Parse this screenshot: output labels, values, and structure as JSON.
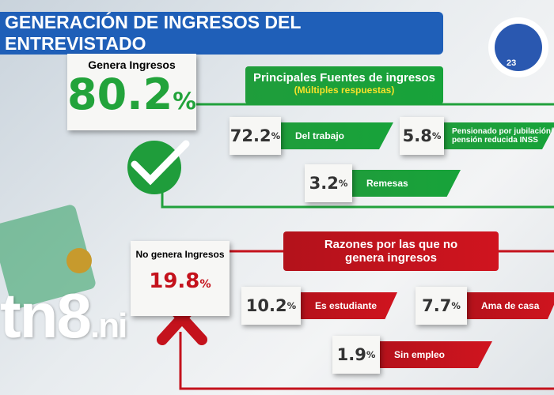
{
  "header": {
    "title": "GENERACIÓN DE INGRESOS DEL ENTREVISTADO",
    "logo_text": "23"
  },
  "generates": {
    "label": "Genera Ingresos",
    "value": "80.2",
    "unit": "%"
  },
  "sources": {
    "title": "Principales Fuentes de ingresos",
    "subtitle": "(Múltiples respuestas)",
    "items": [
      {
        "value": "72.2",
        "unit": "%",
        "label": "Del trabajo"
      },
      {
        "value": "5.8",
        "unit": "%",
        "label": "Pensionado por jubilación/ pensión reducida INSS"
      },
      {
        "value": "3.2",
        "unit": "%",
        "label": "Remesas"
      }
    ]
  },
  "not_generates": {
    "label": "No genera Ingresos",
    "value": "19.8",
    "unit": "%"
  },
  "reasons": {
    "title": "Razones por las que no genera ingresos",
    "items": [
      {
        "value": "10.2",
        "unit": "%",
        "label": "Es estudiante"
      },
      {
        "value": "7.7",
        "unit": "%",
        "label": "Ama de casa"
      },
      {
        "value": "1.9",
        "unit": "%",
        "label": "Sin empleo"
      }
    ]
  },
  "watermark": {
    "brand": "tn8",
    "domain": ".ni"
  }
}
